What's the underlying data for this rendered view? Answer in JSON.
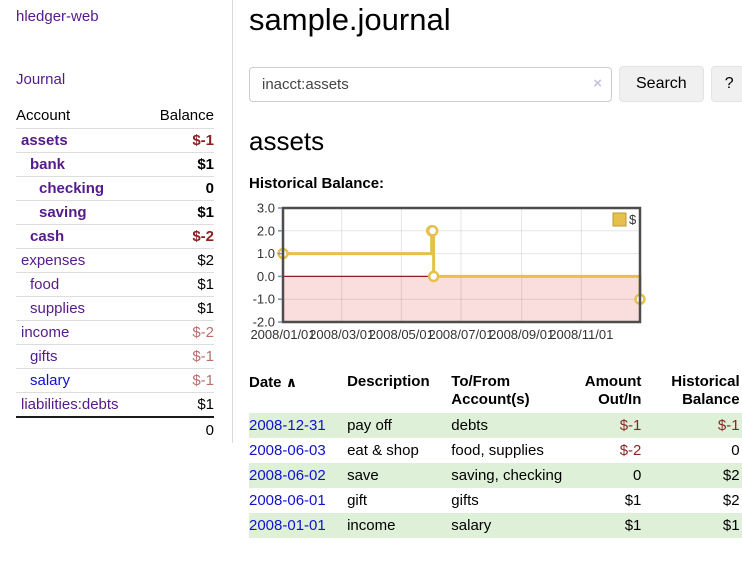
{
  "colors": {
    "link_purple": "#551a8b",
    "link_blue": "#1111cc",
    "negative_dark": "#8b1f1f",
    "negative_muted": "#bc6e6e",
    "row_green": "#dff0d8",
    "chart_line_gold": "#e6c04d",
    "chart_negative_fill": "#fadddd",
    "chart_zero_line": "#8f1d1d"
  },
  "sidebar": {
    "app_title": "hledger-web",
    "journal_label": "Journal",
    "accounts_table": {
      "account_header": "Account",
      "balance_header": "Balance",
      "rows": [
        {
          "name": "assets",
          "indent": 0,
          "balance": "$-1",
          "bold": true,
          "negative": true,
          "link_color": "purple"
        },
        {
          "name": "bank",
          "indent": 1,
          "balance": "$1",
          "bold": true,
          "negative": false,
          "link_color": "purple"
        },
        {
          "name": "checking",
          "indent": 2,
          "balance": "0",
          "bold": true,
          "negative": false,
          "link_color": "purple"
        },
        {
          "name": "saving",
          "indent": 2,
          "balance": "$1",
          "bold": true,
          "negative": false,
          "link_color": "purple"
        },
        {
          "name": "cash",
          "indent": 1,
          "balance": "$-2",
          "bold": true,
          "negative": true,
          "link_color": "purple"
        },
        {
          "name": "expenses",
          "indent": 0,
          "balance": "$2",
          "bold": false,
          "negative": false,
          "link_color": "purple"
        },
        {
          "name": "food",
          "indent": 1,
          "balance": "$1",
          "bold": false,
          "negative": false,
          "link_color": "purple"
        },
        {
          "name": "supplies",
          "indent": 1,
          "balance": "$1",
          "bold": false,
          "negative": false,
          "link_color": "purple"
        },
        {
          "name": "income",
          "indent": 0,
          "balance": "$-2",
          "bold": false,
          "negative": true,
          "link_color": "purple"
        },
        {
          "name": "gifts",
          "indent": 1,
          "balance": "$-1",
          "bold": false,
          "negative": true,
          "link_color": "purple"
        },
        {
          "name": "salary",
          "indent": 1,
          "balance": "$-1",
          "bold": false,
          "negative": true,
          "link_color": "blue"
        },
        {
          "name": "liabilities:debts",
          "indent": 0,
          "balance": "$1",
          "bold": false,
          "negative": false,
          "link_color": "purple"
        }
      ],
      "total": "0"
    }
  },
  "main": {
    "title": "sample.journal",
    "search": {
      "value": "inacct:assets",
      "clear_icon": "×",
      "button_label": "Search",
      "help_label": "?"
    },
    "account_heading": "assets",
    "chart_label": "Historical Balance:",
    "register": {
      "columns": [
        {
          "label": "Date",
          "align": "left",
          "sorted_asc": true
        },
        {
          "label": "Description",
          "align": "left"
        },
        {
          "label": "To/From Account(s)",
          "align": "left"
        },
        {
          "label": "Amount Out/In",
          "align": "right"
        },
        {
          "label": "Historical Balance",
          "align": "right"
        }
      ],
      "sort_icon": "∧",
      "rows": [
        {
          "date": "2008-12-31",
          "description": "pay off",
          "accounts": "debts",
          "amount": "$-1",
          "amount_negative": true,
          "balance": "$-1",
          "balance_negative": true
        },
        {
          "date": "2008-06-03",
          "description": "eat & shop",
          "accounts": "food, supplies",
          "amount": "$-2",
          "amount_negative": true,
          "balance": "0",
          "balance_negative": false
        },
        {
          "date": "2008-06-02",
          "description": "save",
          "accounts": "saving, checking",
          "amount": "0",
          "amount_negative": false,
          "balance": "$2",
          "balance_negative": false
        },
        {
          "date": "2008-06-01",
          "description": "gift",
          "accounts": "gifts",
          "amount": "$1",
          "amount_negative": false,
          "balance": "$2",
          "balance_negative": false
        },
        {
          "date": "2008-01-01",
          "description": "income",
          "accounts": "salary",
          "amount": "$1",
          "amount_negative": false,
          "balance": "$1",
          "balance_negative": false
        }
      ]
    }
  },
  "chart_data": {
    "type": "line",
    "title": "Historical Balance of assets",
    "legend": [
      {
        "label": "$",
        "color": "#e6c04d"
      }
    ],
    "ylim": [
      -2.0,
      3.0
    ],
    "y_ticks": [
      {
        "value": 3,
        "label": "3.0"
      },
      {
        "value": 2,
        "label": "2.0"
      },
      {
        "value": 1,
        "label": "1.0"
      },
      {
        "value": 0,
        "label": "0.0"
      },
      {
        "value": -1,
        "label": "-1.0"
      },
      {
        "value": -2,
        "label": "-2.0"
      }
    ],
    "x_domain_days": [
      0,
      365
    ],
    "x_ticks": [
      {
        "day": 0,
        "label": "2008/01/01"
      },
      {
        "day": 60,
        "label": "2008/03/01"
      },
      {
        "day": 121,
        "label": "2008/05/01"
      },
      {
        "day": 182,
        "label": "2008/07/01"
      },
      {
        "day": 244,
        "label": "2008/09/01"
      },
      {
        "day": 305,
        "label": "2008/11/01"
      }
    ],
    "series": [
      {
        "name": "$",
        "step": "h-then-v",
        "points": [
          {
            "date": "2008-01-01",
            "day": 0,
            "value": 1
          },
          {
            "date": "2008-06-01",
            "day": 152,
            "value": 2
          },
          {
            "date": "2008-06-02",
            "day": 153,
            "value": 2
          },
          {
            "date": "2008-06-03",
            "day": 154,
            "value": 0
          },
          {
            "date": "2008-12-31",
            "day": 365,
            "value": -1
          }
        ]
      }
    ],
    "grid": true,
    "negative_region_shaded": true,
    "legend_position": "top-right"
  }
}
